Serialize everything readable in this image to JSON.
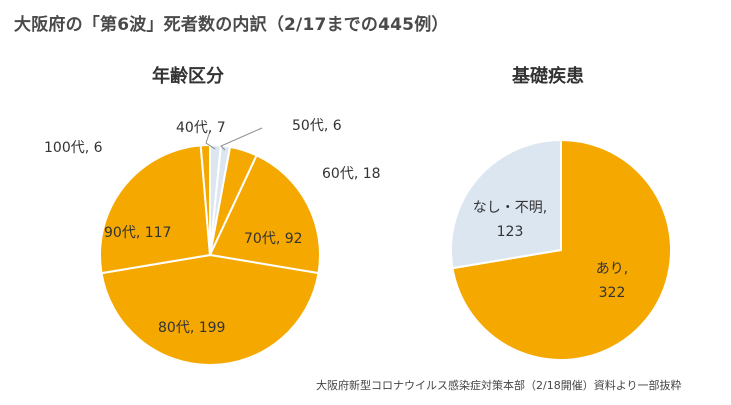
{
  "title": "大阪府の「第6波」死者数の内訳（2/17までの445例）",
  "source": "大阪府新型コロナウイルス感染症対策本部（2/18開催）資料より一部抜粋",
  "colors": {
    "orange": "#F5A800",
    "lightblue": "#DCE6F1",
    "edge": "#ffffff",
    "leader": "#8c8c8c",
    "text": "#333333"
  },
  "chart_data": [
    {
      "type": "pie",
      "title": "年齢区分",
      "slices": [
        {
          "label": "40代",
          "value": 7,
          "text": "40代, 7",
          "color": "#DCE6F1"
        },
        {
          "label": "50代",
          "value": 6,
          "text": "50代, 6",
          "color": "#DCE6F1"
        },
        {
          "label": "60代",
          "value": 18,
          "text": "60代, 18",
          "color": "#F5A800"
        },
        {
          "label": "70代",
          "value": 92,
          "text": "70代, 92",
          "color": "#F5A800"
        },
        {
          "label": "80代",
          "value": 199,
          "text": "80代, 199",
          "color": "#F5A800"
        },
        {
          "label": "90代",
          "value": 117,
          "text": "90代, 117",
          "color": "#F5A800"
        },
        {
          "label": "100代",
          "value": 6,
          "text": "100代, 6",
          "color": "#F5A800"
        }
      ]
    },
    {
      "type": "pie",
      "title": "基礎疾患",
      "slices": [
        {
          "label": "あり",
          "value": 322,
          "line1": "あり,",
          "line2": "322",
          "color": "#F5A800"
        },
        {
          "label": "なし・不明",
          "value": 123,
          "line1": "なし・不明,",
          "line2": "123",
          "color": "#DCE6F1"
        }
      ]
    }
  ]
}
